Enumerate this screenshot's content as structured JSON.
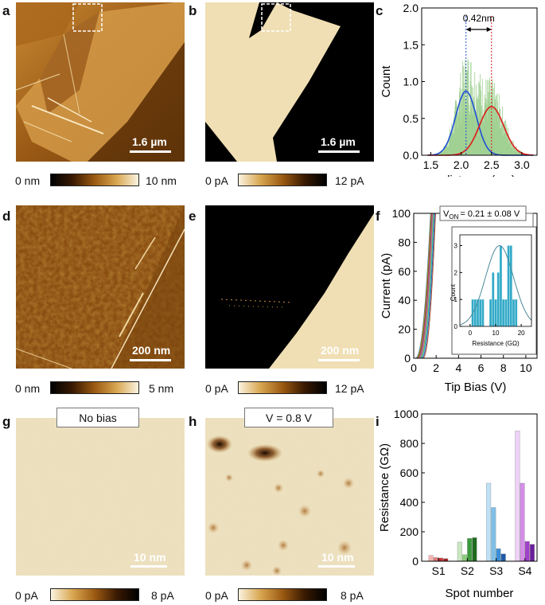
{
  "panels": {
    "a": {
      "label": "a",
      "scale_text": "1.6 µm",
      "cbar_min": "0 nm",
      "cbar_max": "10 nm"
    },
    "b": {
      "label": "b",
      "scale_text": "1.6 µm",
      "cbar_min": "0 pA",
      "cbar_max": "12 pA"
    },
    "c": {
      "label": "c"
    },
    "d": {
      "label": "d",
      "scale_text": "200 nm",
      "cbar_min": "0 nm",
      "cbar_max": "5 nm"
    },
    "e": {
      "label": "e",
      "scale_text": "200 nm",
      "cbar_min": "0 pA",
      "cbar_max": "12 pA"
    },
    "f": {
      "label": "f"
    },
    "g": {
      "label": "g",
      "box_text": "No bias",
      "scale_text": "10 nm",
      "cbar_min": "0 pA",
      "cbar_max": "8 pA"
    },
    "h": {
      "label": "h",
      "box_text": "V = 0.8 V",
      "scale_text": "10 nm",
      "cbar_min": "0 pA",
      "cbar_max": "8 pA"
    },
    "i": {
      "label": "i"
    }
  },
  "colors": {
    "afm_dark": "#2a1200",
    "afm_mid": "#9c5a12",
    "afm_light": "#f3e6c6",
    "current_bg": "#f0dfb4",
    "current_dark": "#000000",
    "fit_blue": "#1f4fd6",
    "fit_red": "#e01a1a",
    "hist_green": "#9ccf8e"
  },
  "chart_data": [
    {
      "id": "c",
      "type": "bar",
      "xlabel": "distance (nm)",
      "ylabel": "Count",
      "xlim": [
        1.35,
        3.25
      ],
      "ylim": [
        0,
        2.0
      ],
      "xticks": [
        "1.5",
        "2.0",
        "2.5",
        "3.0"
      ],
      "yticks": [
        "0.0",
        "0.5",
        "1.0",
        "1.5",
        "2.0"
      ],
      "annotation": "0.42nm",
      "peaks": [
        2.08,
        2.5
      ],
      "series": [
        {
          "kind": "histogram",
          "x_start": 1.45,
          "x_end": 3.15
        },
        {
          "kind": "gaussian",
          "center": 2.08,
          "sigma": 0.17,
          "amplitude": 0.87,
          "color": "blue"
        },
        {
          "kind": "gaussian",
          "center": 2.5,
          "sigma": 0.2,
          "amplitude": 0.66,
          "color": "red"
        }
      ]
    },
    {
      "id": "f",
      "type": "line",
      "xlabel": "Tip Bias (V)",
      "ylabel": "Current (pA)",
      "xlim": [
        0,
        11
      ],
      "ylim": [
        0,
        100
      ],
      "xticks": [
        "0",
        "2",
        "4",
        "6",
        "8",
        "10"
      ],
      "yticks": [
        "0",
        "20",
        "40",
        "60",
        "80",
        "100"
      ],
      "annotation_prefix": "V",
      "annotation_sub": "ON",
      "annotation_rest": "= 0.21 ± 0.08 V",
      "curve_onsets": [
        0.15,
        0.2,
        0.25,
        0.3,
        0.35,
        0.4,
        0.45,
        0.5,
        0.55,
        0.6,
        0.7,
        0.8
      ],
      "inset": {
        "type": "bar",
        "xlabel": "Resistance (GΩ)",
        "ylabel": "Count",
        "xlim": [
          -4,
          24
        ],
        "ylim": [
          0,
          3.4
        ],
        "xticks": [
          "0",
          "10",
          "20"
        ],
        "yticks": [
          "0",
          "1",
          "2",
          "3"
        ],
        "bins": [
          1,
          2,
          3,
          4,
          5,
          8,
          9,
          10,
          11,
          12,
          13,
          14,
          15,
          16,
          17,
          18
        ],
        "counts": [
          1,
          1,
          1,
          1,
          1,
          1,
          2,
          1,
          2,
          3,
          1,
          1,
          3,
          3,
          1,
          1
        ],
        "fit": {
          "center": 11.5,
          "sigma": 5.5,
          "amplitude": 3.0
        }
      }
    },
    {
      "id": "i",
      "type": "bar",
      "xlabel": "Spot number",
      "ylabel": "Resistance (GΩ)",
      "ylim": [
        0,
        1000
      ],
      "yticks": [
        "0",
        "200",
        "400",
        "600",
        "800",
        "1000"
      ],
      "categories": [
        "S1",
        "S2",
        "S3",
        "S4"
      ],
      "groups": [
        {
          "values": [
            40,
            25,
            22,
            18
          ],
          "colors": [
            "#f2b4b0",
            "#e07a78",
            "#cc3333",
            "#a81e1e"
          ]
        },
        {
          "values": [
            130,
            45,
            155,
            160
          ],
          "colors": [
            "#c9e6c0",
            "#8bcf7a",
            "#3a9a3a",
            "#1f6b1f"
          ]
        },
        {
          "values": [
            530,
            365,
            85,
            50
          ],
          "colors": [
            "#bfe0f5",
            "#7fbfe8",
            "#3a8fd6",
            "#1f5aa8"
          ]
        },
        {
          "values": [
            885,
            530,
            135,
            115
          ],
          "colors": [
            "#eed2f7",
            "#d48ee8",
            "#a040c8",
            "#6a1f9a"
          ]
        }
      ]
    }
  ]
}
